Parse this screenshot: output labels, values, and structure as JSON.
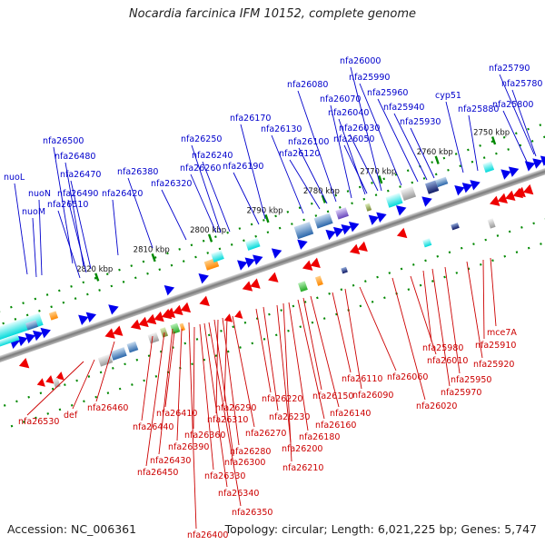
{
  "title": "Nocardia farcinica IFM 10152, complete genome",
  "footer": {
    "accession": "Accession: NC_006361",
    "topology": "Topology: circular; Length: 6,021,225 bp; Genes: 5,747"
  },
  "ticks": [
    "2750 kbp",
    "2760 kbp",
    "2770 kbp",
    "2780 kbp",
    "2790 kbp",
    "2800 kbp",
    "2810 kbp",
    "2820 kbp"
  ],
  "colors": {
    "forward_strand": "#0000ee",
    "reverse_strand": "#ee0000",
    "forward_label": "#0000cc",
    "reverse_label": "#cc0000",
    "backbone": "#888888",
    "tick": "#008800"
  },
  "forward_genes": [
    "nuoL",
    "nuoN",
    "nuoM",
    "nfa26510",
    "nfa26490",
    "nfa26470",
    "nfa26480",
    "nfa26500",
    "nfa26420",
    "nfa26380",
    "nfa26320",
    "nfa26260",
    "nfa26240",
    "nfa26250",
    "nfa26190",
    "nfa26170",
    "nfa26130",
    "nfa26120",
    "nfa26100",
    "nfa26080",
    "nfa26070",
    "nfa26050",
    "nfa26040",
    "nfa26030",
    "nfa26000",
    "nfa25990",
    "nfa25960",
    "nfa25940",
    "nfa25930",
    "cyp51",
    "nfa25880",
    "nfa25800",
    "nfa25780",
    "nfa25790"
  ],
  "reverse_genes": [
    "nfa26530",
    "def",
    "nfa26460",
    "nfa26440",
    "nfa26410",
    "nfa26430",
    "nfa26450",
    "nfa26390",
    "nfa26360",
    "nfa26330",
    "nfa26340",
    "nfa26350",
    "nfa26400",
    "nfa26310",
    "nfa26290",
    "nfa26300",
    "nfa26280",
    "nfa26270",
    "nfa26220",
    "nfa26230",
    "nfa26200",
    "nfa26210",
    "nfa26180",
    "nfa26160",
    "nfa26150",
    "nfa26140",
    "nfa26110",
    "nfa26090",
    "nfa26060",
    "nfa26020",
    "nfa26010",
    "nfa25980",
    "nfa25970",
    "nfa25950",
    "nfa25920",
    "nfa25910",
    "mce7A"
  ]
}
